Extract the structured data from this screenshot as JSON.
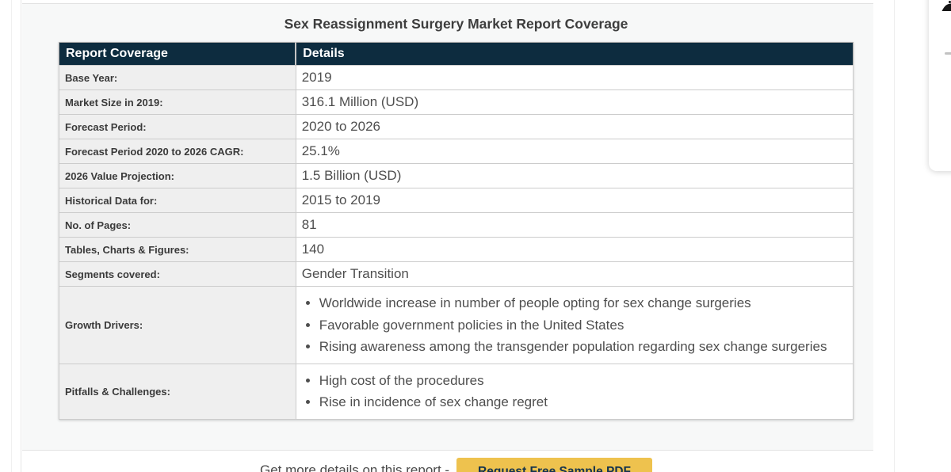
{
  "title": "Sex Reassignment Surgery Market Report Coverage",
  "table": {
    "headers": [
      "Report Coverage",
      "Details"
    ],
    "rows": [
      {
        "label": "Base Year:",
        "value": "2019"
      },
      {
        "label": "Market Size in 2019:",
        "value": "316.1 Million (USD)"
      },
      {
        "label": "Forecast Period:",
        "value": "2020 to 2026"
      },
      {
        "label": "Forecast Period 2020 to 2026 CAGR:",
        "value": "25.1%"
      },
      {
        "label": "2026 Value Projection:",
        "value": "1.5 Billion (USD)"
      },
      {
        "label": "Historical Data for:",
        "value": "2015 to 2019"
      },
      {
        "label": "No. of Pages:",
        "value": "81"
      },
      {
        "label": "Tables, Charts & Figures:",
        "value": "140"
      },
      {
        "label": "Segments covered:",
        "value": "Gender Transition"
      },
      {
        "label": "Growth Drivers:",
        "bullets": [
          "Worldwide increase in number of people opting for sex change surgeries",
          "Favorable government policies in the United States",
          "Rising awareness among the transgender population regarding sex change surgeries"
        ]
      },
      {
        "label": "Pitfalls & Challenges:",
        "bullets": [
          "High cost of the procedures",
          "Rise in incidence of sex change regret"
        ]
      }
    ]
  },
  "footer": {
    "cta_text": "Get more details on this report -",
    "button_label": "Request Free Sample PDF"
  },
  "right_card": {
    "icon": "partial-dark-icon"
  },
  "colors": {
    "header_bg": "#0d2c3f",
    "header_text": "#ffffff",
    "panel_bg": "#f7f8f8",
    "label_cell_bg": "#efefef",
    "title_text": "#3d3d3d",
    "value_text": "#4e4e4e",
    "button_bg": "#eec24e",
    "button_text": "#14334d",
    "border": "#cccccc"
  }
}
